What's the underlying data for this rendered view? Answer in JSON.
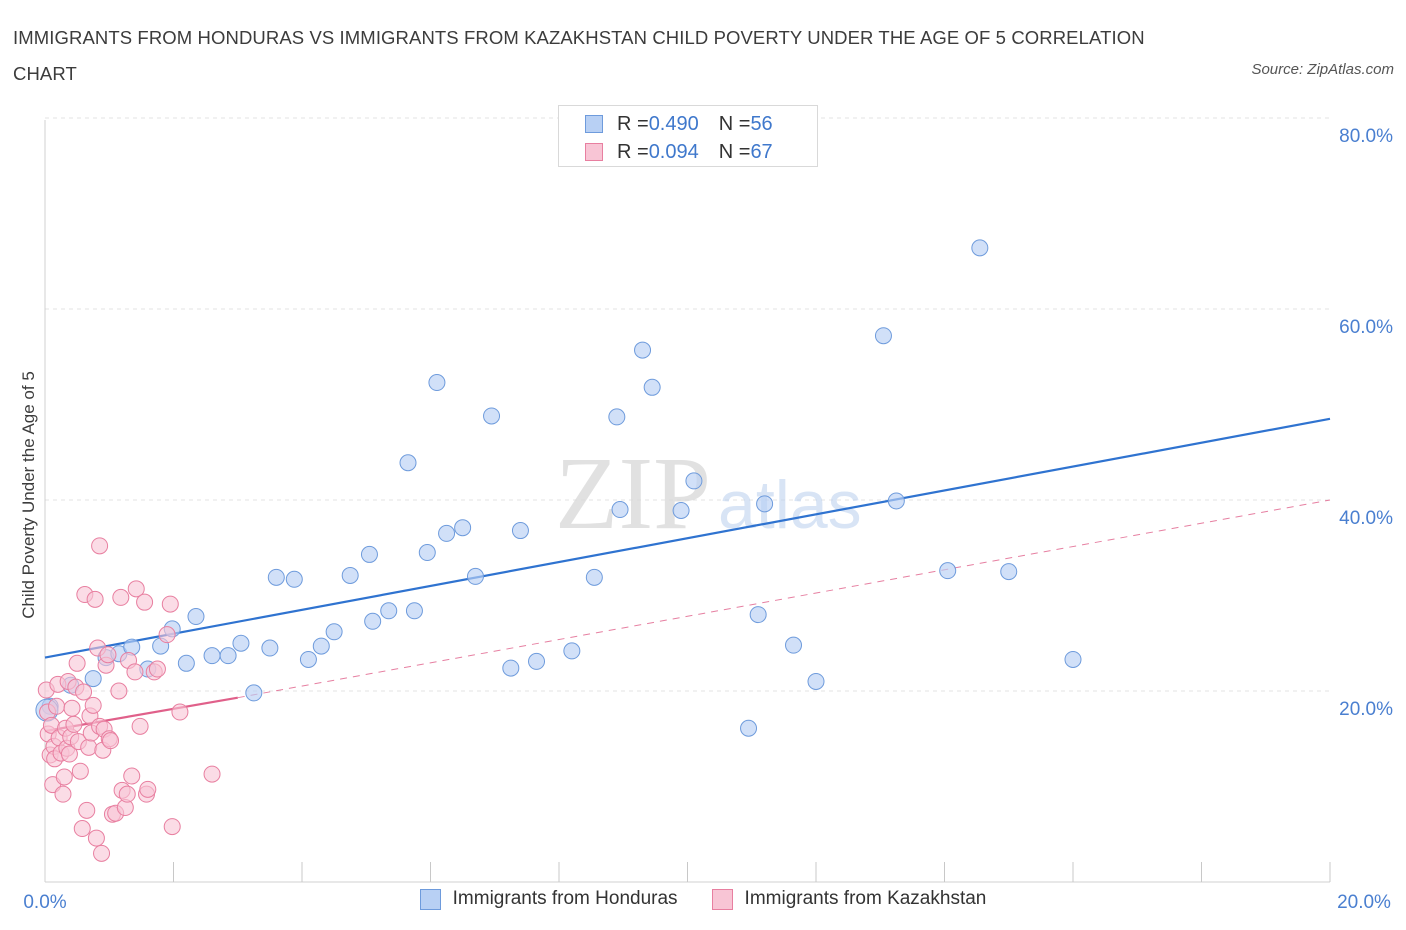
{
  "header": {
    "title": "IMMIGRANTS FROM HONDURAS VS IMMIGRANTS FROM KAZAKHSTAN CHILD POVERTY UNDER THE AGE OF 5 CORRELATION CHART",
    "source": "Source: ZipAtlas.com"
  },
  "watermark": {
    "zip": "ZIP",
    "atlas": "atlas"
  },
  "legend": {
    "series1": {
      "r_label": "R = ",
      "r_value": "0.490",
      "n_label": "N = ",
      "n_value": "56"
    },
    "series2": {
      "r_label": "R = ",
      "r_value": "0.094",
      "n_label": "N = ",
      "n_value": "67"
    }
  },
  "bottom_legend": {
    "series1_label": "Immigrants from Honduras",
    "series2_label": "Immigrants from Kazakhstan"
  },
  "chart_data": {
    "type": "scatter",
    "title": "IMMIGRANTS FROM HONDURAS VS IMMIGRANTS FROM KAZAKHSTAN CHILD POVERTY UNDER THE AGE OF 5 CORRELATION CHART",
    "xlabel": "",
    "ylabel": "Child Poverty Under the Age of 5",
    "xlim": [
      0,
      20
    ],
    "ylim": [
      0,
      80
    ],
    "x_tick_labels": [
      "0.0%",
      "20.0%"
    ],
    "y_ticks": [
      20,
      40,
      60,
      80
    ],
    "y_tick_labels": [
      "20.0%",
      "40.0%",
      "60.0%",
      "80.0%"
    ],
    "grid": true,
    "legend_position": "top-center",
    "colors": {
      "honduras_fill": "#b8d0f4",
      "honduras_stroke": "#6e9bdc",
      "honduras_line": "#2f73d0",
      "kazakhstan_fill": "#f8c5d5",
      "kazakhstan_stroke": "#e87fa0",
      "kazakhstan_line": "#e0608a",
      "tick_label": "#4a7fd0"
    },
    "series": [
      {
        "name": "Immigrants from Honduras",
        "R": 0.49,
        "N": 56,
        "trend": {
          "x": [
            0,
            20
          ],
          "y": [
            23.5,
            48.5
          ],
          "style": "solid"
        },
        "points": [
          {
            "x": 0.08,
            "y": 18.4
          },
          {
            "x": 0.4,
            "y": 20.6
          },
          {
            "x": 0.75,
            "y": 21.3
          },
          {
            "x": 0.95,
            "y": 23.5
          },
          {
            "x": 1.15,
            "y": 23.9
          },
          {
            "x": 1.35,
            "y": 24.6
          },
          {
            "x": 1.6,
            "y": 22.3
          },
          {
            "x": 1.8,
            "y": 24.7
          },
          {
            "x": 1.98,
            "y": 26.5
          },
          {
            "x": 2.2,
            "y": 22.9
          },
          {
            "x": 2.35,
            "y": 27.8
          },
          {
            "x": 2.6,
            "y": 23.7
          },
          {
            "x": 2.85,
            "y": 23.7
          },
          {
            "x": 3.05,
            "y": 25.0
          },
          {
            "x": 3.25,
            "y": 19.8
          },
          {
            "x": 3.5,
            "y": 24.5
          },
          {
            "x": 3.6,
            "y": 31.9
          },
          {
            "x": 3.88,
            "y": 31.7
          },
          {
            "x": 4.1,
            "y": 23.3
          },
          {
            "x": 4.3,
            "y": 24.7
          },
          {
            "x": 4.5,
            "y": 26.2
          },
          {
            "x": 4.75,
            "y": 32.1
          },
          {
            "x": 5.05,
            "y": 34.3
          },
          {
            "x": 5.1,
            "y": 27.3
          },
          {
            "x": 5.35,
            "y": 28.4
          },
          {
            "x": 5.65,
            "y": 43.9
          },
          {
            "x": 5.75,
            "y": 28.4
          },
          {
            "x": 5.95,
            "y": 34.5
          },
          {
            "x": 6.1,
            "y": 52.3
          },
          {
            "x": 6.25,
            "y": 36.5
          },
          {
            "x": 6.5,
            "y": 37.1
          },
          {
            "x": 6.7,
            "y": 32.0
          },
          {
            "x": 6.95,
            "y": 48.8
          },
          {
            "x": 7.25,
            "y": 22.4
          },
          {
            "x": 7.4,
            "y": 36.8
          },
          {
            "x": 7.65,
            "y": 23.1
          },
          {
            "x": 8.2,
            "y": 24.2
          },
          {
            "x": 8.55,
            "y": 31.9
          },
          {
            "x": 8.9,
            "y": 48.7
          },
          {
            "x": 8.95,
            "y": 39.0
          },
          {
            "x": 9.3,
            "y": 55.7
          },
          {
            "x": 9.45,
            "y": 51.8
          },
          {
            "x": 9.9,
            "y": 38.9
          },
          {
            "x": 10.1,
            "y": 42.0
          },
          {
            "x": 10.95,
            "y": 16.1
          },
          {
            "x": 11.1,
            "y": 28.0
          },
          {
            "x": 11.2,
            "y": 39.6
          },
          {
            "x": 11.65,
            "y": 24.8
          },
          {
            "x": 12.0,
            "y": 21.0
          },
          {
            "x": 13.05,
            "y": 57.2
          },
          {
            "x": 13.25,
            "y": 39.9
          },
          {
            "x": 14.05,
            "y": 32.6
          },
          {
            "x": 14.55,
            "y": 66.4
          },
          {
            "x": 15.0,
            "y": 32.5
          },
          {
            "x": 16.0,
            "y": 23.3
          },
          {
            "x": 0.03,
            "y": 18.0
          }
        ]
      },
      {
        "name": "Immigrants from Kazakhstan",
        "R": 0.094,
        "N": 67,
        "trend": {
          "x": [
            0,
            3.0
          ],
          "y": [
            15.8,
            19.3
          ],
          "style": "solid"
        },
        "trend_extension": {
          "x": [
            3.0,
            20
          ],
          "y": [
            19.3,
            40.0
          ],
          "style": "dashed"
        },
        "points": [
          {
            "x": 0.02,
            "y": 20.1
          },
          {
            "x": 0.04,
            "y": 17.8
          },
          {
            "x": 0.05,
            "y": 15.5
          },
          {
            "x": 0.08,
            "y": 13.3
          },
          {
            "x": 0.1,
            "y": 16.4
          },
          {
            "x": 0.12,
            "y": 10.2
          },
          {
            "x": 0.14,
            "y": 14.2
          },
          {
            "x": 0.15,
            "y": 12.9
          },
          {
            "x": 0.18,
            "y": 18.4
          },
          {
            "x": 0.2,
            "y": 20.7
          },
          {
            "x": 0.22,
            "y": 15.1
          },
          {
            "x": 0.25,
            "y": 13.5
          },
          {
            "x": 0.28,
            "y": 9.2
          },
          {
            "x": 0.3,
            "y": 11.0
          },
          {
            "x": 0.32,
            "y": 16.1
          },
          {
            "x": 0.34,
            "y": 14.0
          },
          {
            "x": 0.36,
            "y": 21.0
          },
          {
            "x": 0.38,
            "y": 13.4
          },
          {
            "x": 0.4,
            "y": 15.2
          },
          {
            "x": 0.42,
            "y": 18.2
          },
          {
            "x": 0.45,
            "y": 16.5
          },
          {
            "x": 0.48,
            "y": 20.4
          },
          {
            "x": 0.5,
            "y": 22.9
          },
          {
            "x": 0.52,
            "y": 14.7
          },
          {
            "x": 0.55,
            "y": 11.6
          },
          {
            "x": 0.58,
            "y": 5.6
          },
          {
            "x": 0.6,
            "y": 19.9
          },
          {
            "x": 0.62,
            "y": 30.1
          },
          {
            "x": 0.65,
            "y": 7.5
          },
          {
            "x": 0.68,
            "y": 14.1
          },
          {
            "x": 0.7,
            "y": 17.4
          },
          {
            "x": 0.72,
            "y": 15.6
          },
          {
            "x": 0.75,
            "y": 18.5
          },
          {
            "x": 0.78,
            "y": 29.6
          },
          {
            "x": 0.8,
            "y": 4.6
          },
          {
            "x": 0.82,
            "y": 24.5
          },
          {
            "x": 0.85,
            "y": 16.3
          },
          {
            "x": 0.88,
            "y": 3.0
          },
          {
            "x": 0.9,
            "y": 13.8
          },
          {
            "x": 0.92,
            "y": 16.0
          },
          {
            "x": 0.95,
            "y": 22.7
          },
          {
            "x": 0.98,
            "y": 23.8
          },
          {
            "x": 1.0,
            "y": 15.0
          },
          {
            "x": 1.02,
            "y": 14.8
          },
          {
            "x": 1.05,
            "y": 7.1
          },
          {
            "x": 1.1,
            "y": 7.2
          },
          {
            "x": 1.15,
            "y": 20.0
          },
          {
            "x": 1.18,
            "y": 29.8
          },
          {
            "x": 1.2,
            "y": 9.6
          },
          {
            "x": 1.25,
            "y": 7.8
          },
          {
            "x": 1.28,
            "y": 9.2
          },
          {
            "x": 1.3,
            "y": 23.2
          },
          {
            "x": 1.35,
            "y": 11.1
          },
          {
            "x": 1.4,
            "y": 22.0
          },
          {
            "x": 1.42,
            "y": 30.7
          },
          {
            "x": 1.48,
            "y": 16.3
          },
          {
            "x": 1.55,
            "y": 29.3
          },
          {
            "x": 1.58,
            "y": 9.2
          },
          {
            "x": 1.6,
            "y": 9.7
          },
          {
            "x": 1.7,
            "y": 22.0
          },
          {
            "x": 1.75,
            "y": 22.3
          },
          {
            "x": 1.9,
            "y": 25.9
          },
          {
            "x": 1.95,
            "y": 29.1
          },
          {
            "x": 1.98,
            "y": 5.8
          },
          {
            "x": 2.1,
            "y": 17.8
          },
          {
            "x": 2.6,
            "y": 11.3
          },
          {
            "x": 0.85,
            "y": 35.2
          }
        ]
      }
    ]
  }
}
